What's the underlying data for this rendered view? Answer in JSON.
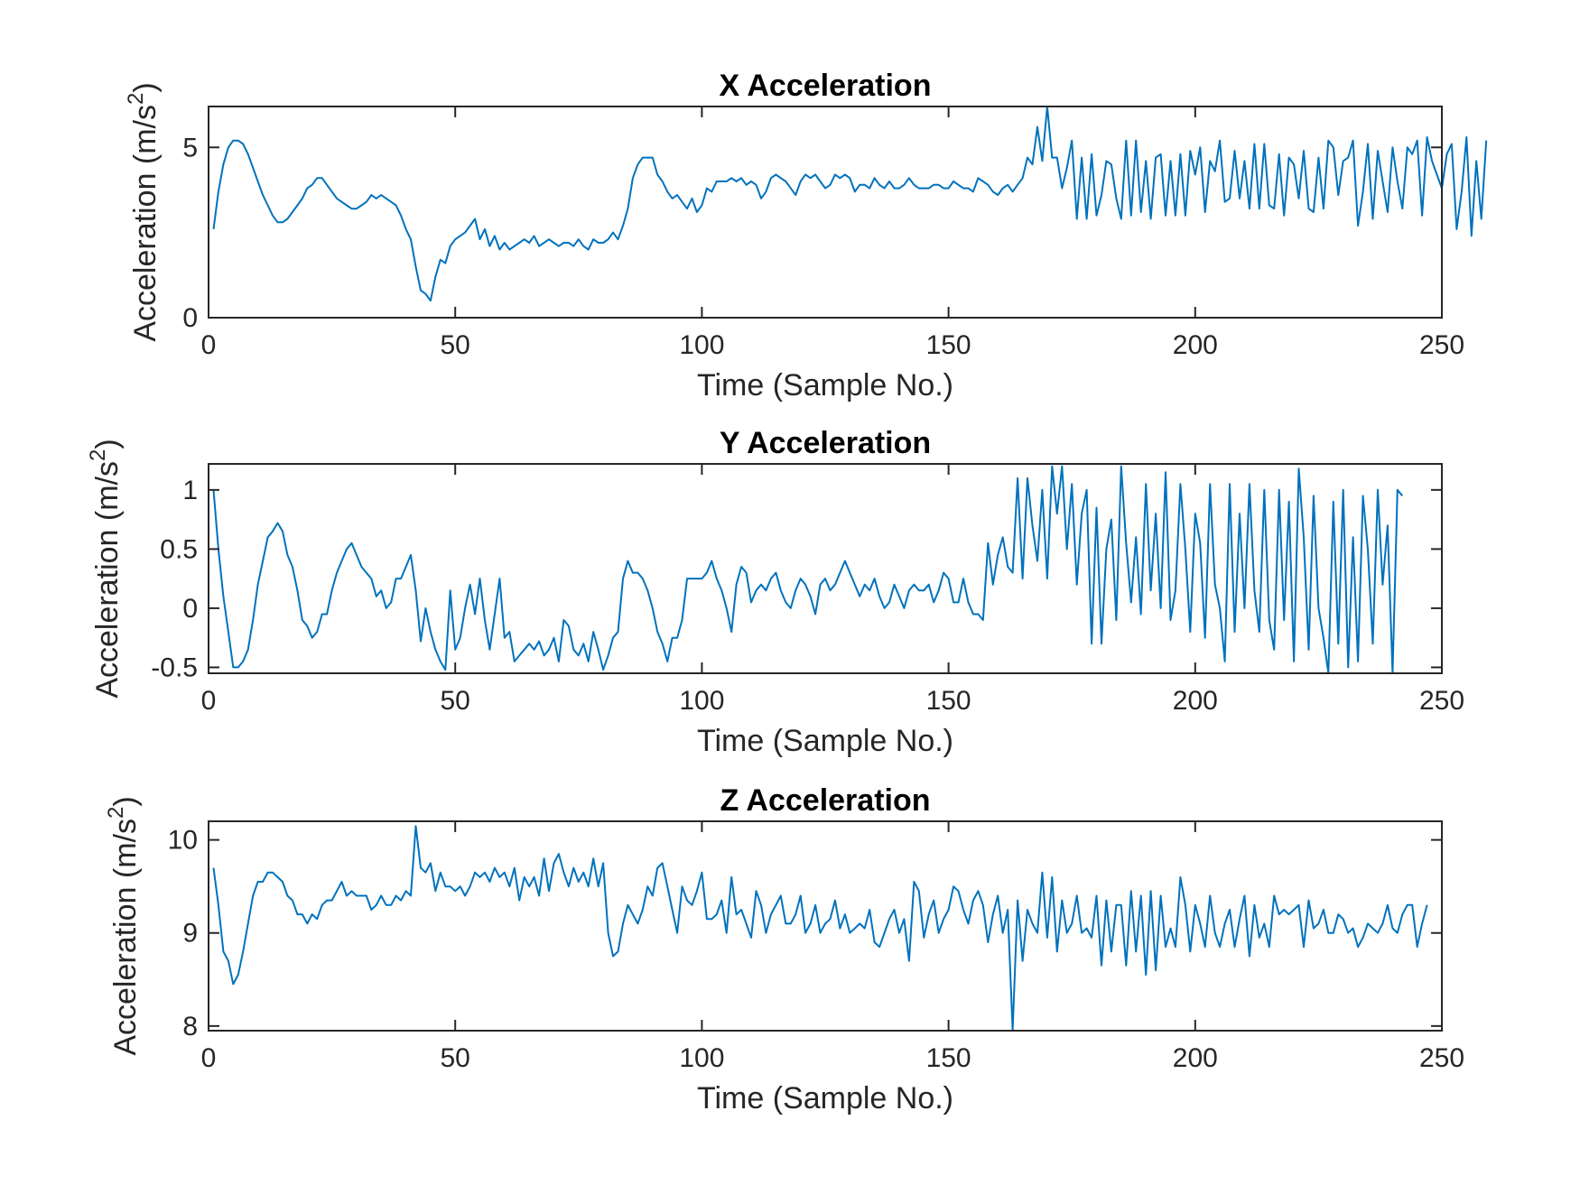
{
  "chart_data": [
    {
      "type": "line",
      "title": "X Acceleration",
      "xlabel": "Time (Sample No.)",
      "ylabel": "Acceleration (m/s",
      "ylabel_sup": "2",
      "ylabel_end": ")",
      "xlim": [
        0,
        250
      ],
      "ylim": [
        0,
        6.2
      ],
      "xticks": [
        0,
        50,
        100,
        150,
        200,
        250
      ],
      "yticks": [
        0,
        5
      ],
      "grid": false,
      "series": [
        {
          "color": "#0072BD",
          "x_start": 1,
          "values": [
            2.6,
            3.7,
            4.5,
            5.0,
            5.2,
            5.2,
            5.1,
            4.8,
            4.4,
            4.0,
            3.6,
            3.3,
            3.0,
            2.8,
            2.8,
            2.9,
            3.1,
            3.3,
            3.5,
            3.8,
            3.9,
            4.1,
            4.1,
            3.9,
            3.7,
            3.5,
            3.4,
            3.3,
            3.2,
            3.2,
            3.3,
            3.4,
            3.6,
            3.5,
            3.6,
            3.5,
            3.4,
            3.3,
            3.0,
            2.6,
            2.3,
            1.5,
            0.8,
            0.7,
            0.5,
            1.2,
            1.7,
            1.6,
            2.1,
            2.3,
            2.4,
            2.5,
            2.7,
            2.9,
            2.3,
            2.6,
            2.1,
            2.4,
            2.0,
            2.2,
            2.0,
            2.1,
            2.2,
            2.3,
            2.2,
            2.4,
            2.1,
            2.2,
            2.3,
            2.2,
            2.1,
            2.2,
            2.2,
            2.1,
            2.3,
            2.1,
            2.0,
            2.3,
            2.2,
            2.2,
            2.3,
            2.5,
            2.3,
            2.7,
            3.2,
            4.1,
            4.5,
            4.7,
            4.7,
            4.7,
            4.2,
            4.0,
            3.7,
            3.5,
            3.6,
            3.4,
            3.2,
            3.5,
            3.1,
            3.3,
            3.8,
            3.7,
            4.0,
            4.0,
            4.0,
            4.1,
            4.0,
            4.1,
            3.9,
            4.0,
            3.9,
            3.5,
            3.7,
            4.1,
            4.2,
            4.1,
            4.0,
            3.8,
            3.6,
            4.0,
            4.2,
            4.1,
            4.2,
            4.0,
            3.8,
            3.9,
            4.2,
            4.1,
            4.2,
            4.1,
            3.7,
            3.9,
            3.9,
            3.8,
            4.1,
            3.9,
            3.8,
            4.0,
            3.8,
            3.8,
            3.9,
            4.1,
            3.9,
            3.8,
            3.8,
            3.8,
            3.9,
            3.9,
            3.8,
            3.8,
            4.0,
            3.9,
            3.8,
            3.8,
            3.7,
            4.1,
            4.0,
            3.9,
            3.7,
            3.6,
            3.8,
            3.9,
            3.7,
            3.9,
            4.1,
            4.7,
            4.5,
            5.6,
            4.6,
            6.2,
            4.7,
            4.7,
            3.8,
            4.4,
            5.2,
            2.9,
            4.7,
            2.9,
            4.8,
            3.0,
            3.6,
            4.6,
            4.5,
            3.5,
            2.9,
            5.2,
            3.0,
            5.2,
            3.1,
            4.6,
            2.9,
            4.7,
            4.8,
            3.0,
            4.6,
            3.0,
            4.8,
            3.0,
            4.9,
            4.2,
            5.0,
            3.1,
            4.6,
            4.3,
            5.2,
            3.4,
            3.5,
            4.9,
            3.5,
            4.6,
            3.2,
            5.1,
            3.2,
            5.1,
            3.3,
            3.2,
            4.8,
            3.0,
            4.7,
            4.5,
            3.5,
            4.9,
            3.2,
            3.1,
            4.7,
            3.2,
            5.2,
            5.0,
            3.6,
            4.6,
            4.7,
            5.2,
            2.7,
            3.7,
            5.1,
            2.9,
            4.9,
            4.0,
            3.1,
            5.0,
            4.0,
            3.2,
            5.0,
            4.8,
            5.2,
            3.0,
            5.3,
            4.6,
            4.2,
            3.8,
            4.8,
            5.1,
            2.6,
            3.7,
            5.3,
            2.4,
            4.6,
            2.9,
            5.2
          ]
        }
      ]
    },
    {
      "type": "line",
      "title": "Y Acceleration",
      "xlabel": "Time (Sample No.)",
      "ylabel": "Acceleration (m/s",
      "ylabel_sup": "2",
      "ylabel_end": ")",
      "xlim": [
        0,
        250
      ],
      "ylim": [
        -0.55,
        1.22
      ],
      "xticks": [
        0,
        50,
        100,
        150,
        200,
        250
      ],
      "ytick_values": [
        -0.5,
        0,
        0.5,
        1
      ],
      "ytick_labels": [
        "-0.5",
        "0",
        "0.5",
        "1"
      ],
      "grid": false,
      "series": [
        {
          "color": "#0072BD",
          "x_start": 1,
          "values": [
            1.0,
            0.5,
            0.1,
            -0.2,
            -0.5,
            -0.5,
            -0.45,
            -0.35,
            -0.1,
            0.2,
            0.4,
            0.6,
            0.65,
            0.72,
            0.65,
            0.45,
            0.35,
            0.15,
            -0.1,
            -0.15,
            -0.25,
            -0.2,
            -0.05,
            -0.05,
            0.15,
            0.3,
            0.4,
            0.5,
            0.55,
            0.45,
            0.35,
            0.3,
            0.25,
            0.1,
            0.15,
            0.0,
            0.05,
            0.25,
            0.25,
            0.35,
            0.45,
            0.15,
            -0.28,
            0.0,
            -0.2,
            -0.35,
            -0.45,
            -0.52,
            0.15,
            -0.35,
            -0.25,
            0.0,
            0.2,
            -0.05,
            0.25,
            -0.1,
            -0.35,
            -0.05,
            0.25,
            -0.25,
            -0.2,
            -0.45,
            -0.4,
            -0.35,
            -0.3,
            -0.35,
            -0.28,
            -0.4,
            -0.35,
            -0.25,
            -0.45,
            -0.1,
            -0.15,
            -0.35,
            -0.4,
            -0.3,
            -0.45,
            -0.2,
            -0.35,
            -0.52,
            -0.4,
            -0.25,
            -0.2,
            0.25,
            0.4,
            0.3,
            0.3,
            0.25,
            0.15,
            0.0,
            -0.2,
            -0.3,
            -0.45,
            -0.25,
            -0.25,
            -0.1,
            0.25,
            0.25,
            0.25,
            0.25,
            0.3,
            0.4,
            0.25,
            0.15,
            0.0,
            -0.2,
            0.2,
            0.35,
            0.3,
            0.05,
            0.15,
            0.2,
            0.15,
            0.25,
            0.3,
            0.15,
            0.05,
            0.0,
            0.15,
            0.25,
            0.2,
            0.1,
            -0.05,
            0.2,
            0.25,
            0.15,
            0.2,
            0.3,
            0.4,
            0.3,
            0.2,
            0.1,
            0.2,
            0.15,
            0.25,
            0.1,
            0.0,
            0.05,
            0.2,
            0.1,
            0.0,
            0.15,
            0.2,
            0.15,
            0.15,
            0.2,
            0.05,
            0.15,
            0.3,
            0.25,
            0.05,
            0.05,
            0.25,
            0.05,
            -0.05,
            -0.05,
            -0.1,
            0.55,
            0.2,
            0.45,
            0.6,
            0.35,
            0.3,
            1.1,
            0.25,
            1.1,
            0.7,
            0.4,
            1.0,
            0.25,
            1.2,
            0.8,
            1.2,
            0.5,
            1.05,
            0.2,
            0.8,
            1.0,
            -0.3,
            0.85,
            -0.3,
            0.5,
            0.75,
            -0.1,
            1.2,
            0.55,
            0.05,
            0.6,
            -0.05,
            1.05,
            0.15,
            0.8,
            0.0,
            1.15,
            -0.1,
            0.15,
            1.05,
            0.5,
            -0.2,
            0.8,
            0.55,
            -0.25,
            1.05,
            0.2,
            0.0,
            -0.45,
            1.05,
            -0.2,
            0.8,
            0.0,
            1.05,
            0.15,
            -0.2,
            1.0,
            -0.1,
            -0.35,
            1.0,
            -0.1,
            0.9,
            -0.45,
            1.18,
            0.6,
            -0.35,
            0.95,
            0.0,
            -0.25,
            -0.55,
            0.9,
            -0.3,
            1.0,
            -0.5,
            0.6,
            -0.45,
            0.95,
            0.5,
            -0.3,
            1.0,
            0.2,
            0.7,
            -0.55,
            1.0,
            0.95
          ]
        }
      ]
    },
    {
      "type": "line",
      "title": "Z Acceleration",
      "xlabel": "Time (Sample No.)",
      "ylabel": "Acceleration (m/s",
      "ylabel_sup": "2",
      "ylabel_end": ")",
      "xlim": [
        0,
        250
      ],
      "ylim": [
        7.95,
        10.2
      ],
      "xticks": [
        0,
        50,
        100,
        150,
        200,
        250
      ],
      "yticks": [
        8,
        9,
        10
      ],
      "grid": false,
      "series": [
        {
          "color": "#0072BD",
          "x_start": 1,
          "values": [
            9.7,
            9.3,
            8.8,
            8.7,
            8.45,
            8.55,
            8.8,
            9.1,
            9.4,
            9.55,
            9.55,
            9.65,
            9.65,
            9.6,
            9.55,
            9.4,
            9.35,
            9.2,
            9.2,
            9.1,
            9.2,
            9.15,
            9.3,
            9.35,
            9.35,
            9.45,
            9.55,
            9.4,
            9.45,
            9.4,
            9.4,
            9.4,
            9.25,
            9.3,
            9.4,
            9.3,
            9.3,
            9.4,
            9.35,
            9.45,
            9.4,
            10.15,
            9.7,
            9.65,
            9.75,
            9.45,
            9.65,
            9.5,
            9.5,
            9.45,
            9.5,
            9.4,
            9.5,
            9.65,
            9.6,
            9.65,
            9.55,
            9.7,
            9.6,
            9.65,
            9.5,
            9.7,
            9.35,
            9.6,
            9.5,
            9.6,
            9.4,
            9.8,
            9.45,
            9.75,
            9.85,
            9.65,
            9.5,
            9.7,
            9.55,
            9.65,
            9.5,
            9.8,
            9.5,
            9.75,
            9.0,
            8.75,
            8.8,
            9.1,
            9.3,
            9.2,
            9.1,
            9.25,
            9.5,
            9.4,
            9.7,
            9.75,
            9.5,
            9.25,
            9.0,
            9.5,
            9.35,
            9.3,
            9.45,
            9.65,
            9.15,
            9.15,
            9.2,
            9.35,
            9.0,
            9.6,
            9.2,
            9.25,
            9.1,
            8.95,
            9.45,
            9.3,
            9.0,
            9.2,
            9.3,
            9.4,
            9.1,
            9.1,
            9.2,
            9.4,
            9.0,
            9.1,
            9.3,
            9.0,
            9.1,
            9.15,
            9.35,
            9.05,
            9.2,
            9.0,
            9.05,
            9.1,
            9.05,
            9.25,
            8.9,
            8.85,
            9.0,
            9.15,
            9.25,
            9.0,
            9.15,
            8.7,
            9.55,
            9.45,
            8.95,
            9.2,
            9.35,
            9.0,
            9.15,
            9.25,
            9.5,
            9.45,
            9.25,
            9.1,
            9.35,
            9.45,
            9.3,
            8.9,
            9.2,
            9.4,
            9.0,
            9.25,
            7.95,
            9.35,
            8.7,
            9.25,
            9.1,
            9.0,
            9.65,
            8.95,
            9.6,
            8.8,
            9.35,
            9.0,
            9.1,
            9.4,
            9.0,
            9.05,
            8.95,
            9.4,
            8.65,
            9.35,
            8.8,
            9.3,
            9.3,
            8.65,
            9.45,
            8.8,
            9.4,
            8.55,
            9.45,
            8.6,
            9.4,
            8.85,
            9.05,
            8.85,
            9.6,
            9.3,
            8.8,
            9.3,
            9.1,
            8.85,
            9.4,
            9.0,
            8.85,
            9.1,
            9.25,
            8.85,
            9.15,
            9.4,
            8.75,
            9.3,
            8.95,
            9.1,
            8.85,
            9.4,
            9.2,
            9.25,
            9.2,
            9.25,
            9.3,
            8.85,
            9.35,
            9.05,
            9.1,
            9.25,
            9.0,
            9.0,
            9.2,
            9.15,
            9.0,
            9.05,
            8.85,
            8.95,
            9.1,
            9.05,
            9.0,
            9.1,
            9.3,
            9.05,
            9.0,
            9.2,
            9.3,
            9.3,
            8.85,
            9.1,
            9.3
          ]
        }
      ]
    }
  ]
}
